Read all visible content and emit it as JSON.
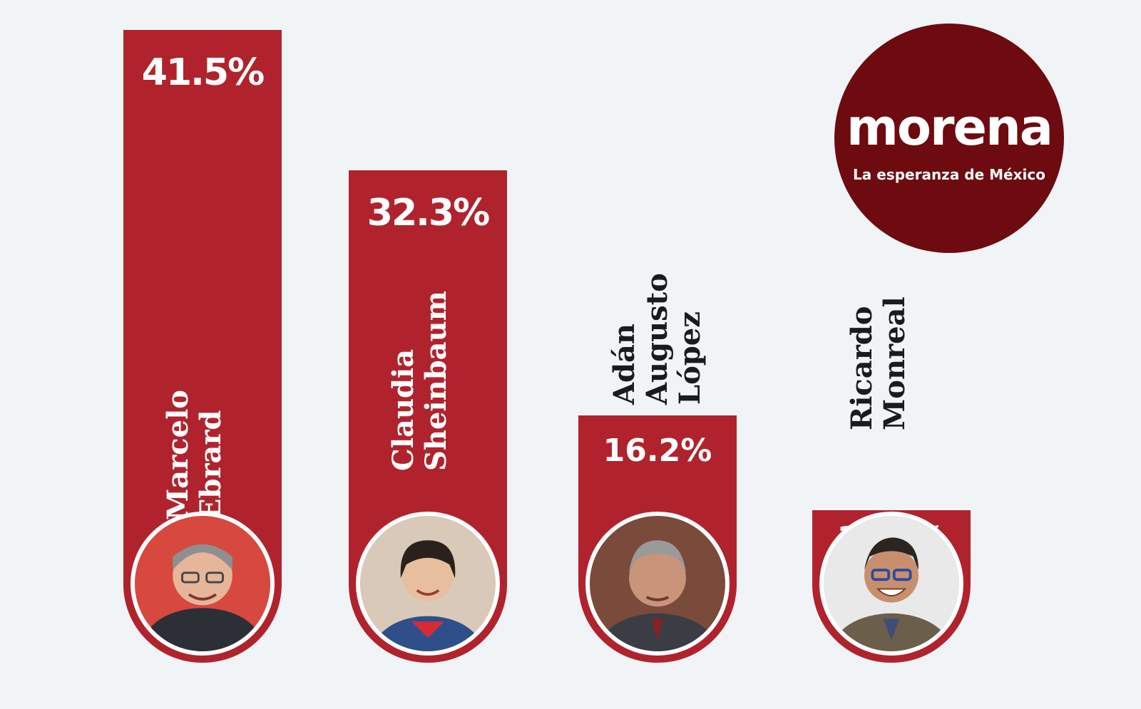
{
  "chart_data": {
    "type": "bar",
    "title": "",
    "xlabel": "",
    "ylabel": "",
    "ylim": [
      0,
      41.5
    ],
    "categories": [
      "Marcelo Ebrard",
      "Claudia Sheinbaum",
      "Adán Augusto López",
      "Ricardo Monreal"
    ],
    "values": [
      41.5,
      32.3,
      16.2,
      10.0
    ],
    "value_labels": [
      "41.5%",
      "32.3%",
      "16.2%",
      "10.0%"
    ],
    "name_lines": [
      [
        "Marcelo",
        "Ebrard"
      ],
      [
        "Claudia",
        "Sheinbaum"
      ],
      [
        "Adán",
        "Augusto",
        "López"
      ],
      [
        "Ricardo",
        "Monreal"
      ]
    ],
    "bar_color": "#b0232d",
    "grid": false,
    "legend": "none"
  },
  "logo": {
    "word": "morena",
    "tagline": "La esperanza de México",
    "color": "#6e0b10"
  },
  "photos": [
    "avatar-marcelo-ebrard",
    "avatar-claudia-sheinbaum",
    "avatar-adan-augusto-lopez",
    "avatar-ricardo-monreal"
  ]
}
